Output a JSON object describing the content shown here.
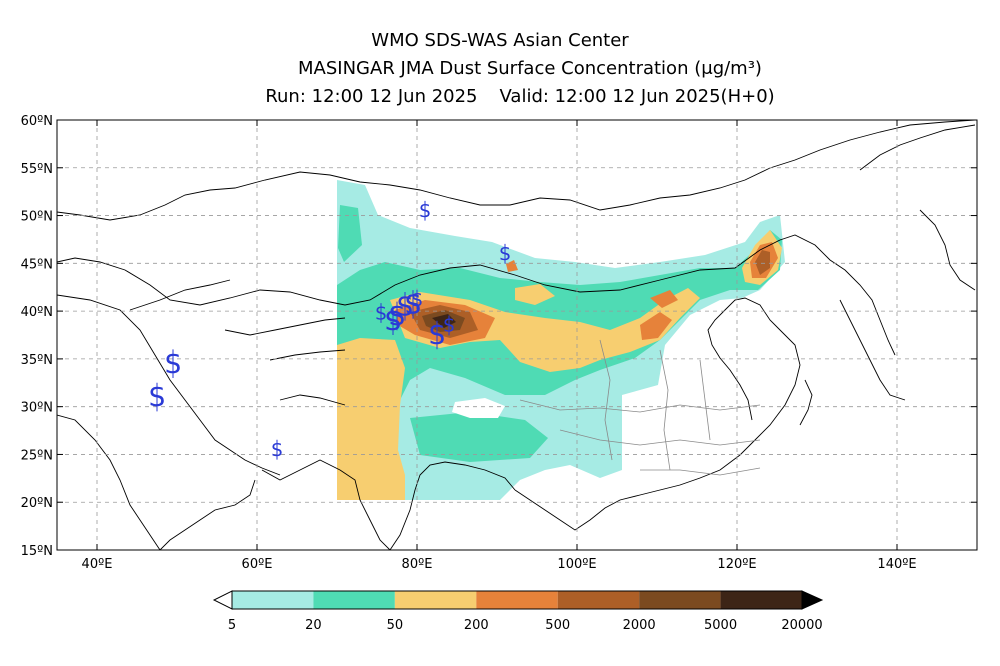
{
  "header": {
    "line1": "WMO SDS-WAS Asian Center",
    "line2_prefix": "MASINGAR JMA Dust Surface Concentration",
    "line2_unit": "(μg/m³)",
    "run_label": "Run: 12:00 12 Jun 2025",
    "valid_label": "Valid: 12:00 12 Jun 2025(H+0)"
  },
  "map": {
    "lon_range": [
      35,
      150
    ],
    "lat_range": [
      15,
      60
    ],
    "lon_ticks": [
      {
        "value": 40,
        "label": "40ºE"
      },
      {
        "value": 60,
        "label": "60ºE"
      },
      {
        "value": 80,
        "label": "80ºE"
      },
      {
        "value": 100,
        "label": "100ºE"
      },
      {
        "value": 120,
        "label": "120ºE"
      },
      {
        "value": 140,
        "label": "140ºE"
      }
    ],
    "lat_ticks": [
      {
        "value": 60,
        "label": "60ºN"
      },
      {
        "value": 55,
        "label": "55ºN"
      },
      {
        "value": 50,
        "label": "50ºN"
      },
      {
        "value": 45,
        "label": "45ºN"
      },
      {
        "value": 40,
        "label": "40ºN"
      },
      {
        "value": 35,
        "label": "35ºN"
      },
      {
        "value": 30,
        "label": "30ºN"
      },
      {
        "value": 25,
        "label": "25ºN"
      },
      {
        "value": 20,
        "label": "20ºN"
      },
      {
        "value": 15,
        "label": "15ºN"
      }
    ],
    "grid": true
  },
  "colorbar": {
    "levels": [
      "5",
      "20",
      "50",
      "200",
      "500",
      "2000",
      "5000",
      "20000"
    ],
    "colors": [
      "#a6ebe4",
      "#4fdbb4",
      "#f7ce70",
      "#e6823a",
      "#ad5f27",
      "#7b4a20",
      "#3d2516"
    ]
  },
  "markers": {
    "symbol": "S",
    "color": "#2a3ad6",
    "points": [
      {
        "lon": 81.0,
        "lat": 50.5,
        "size": "small"
      },
      {
        "lon": 91.0,
        "lat": 46.0,
        "size": "small"
      },
      {
        "lon": 49.5,
        "lat": 34.5,
        "size": "large"
      },
      {
        "lon": 47.5,
        "lat": 31.0,
        "size": "large"
      },
      {
        "lon": 62.5,
        "lat": 25.5,
        "size": "small"
      },
      {
        "lon": 75.5,
        "lat": 39.8,
        "size": "small"
      },
      {
        "lon": 77.0,
        "lat": 39.0,
        "size": "large"
      },
      {
        "lon": 77.5,
        "lat": 39.5,
        "size": "large"
      },
      {
        "lon": 78.5,
        "lat": 40.5,
        "size": "large"
      },
      {
        "lon": 79.5,
        "lat": 40.7,
        "size": "large"
      },
      {
        "lon": 80.0,
        "lat": 41.2,
        "size": "small"
      },
      {
        "lon": 82.5,
        "lat": 37.5,
        "size": "large"
      },
      {
        "lon": 84.0,
        "lat": 38.5,
        "size": "small"
      }
    ]
  }
}
